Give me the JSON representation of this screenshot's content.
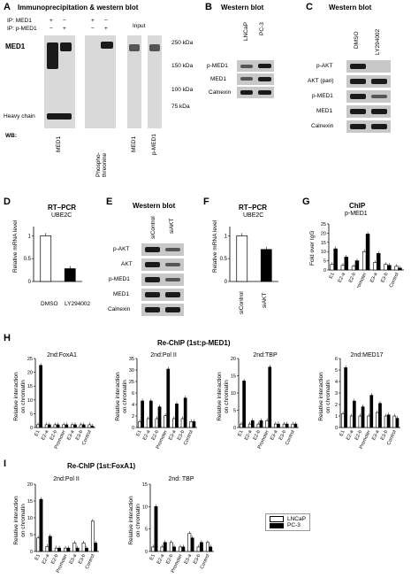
{
  "panels": {
    "A": {
      "label": "A",
      "title": "Immunoprecipitation & western blot",
      "ip_rows": [
        "IP:  MED1",
        "IP: p-MED1"
      ],
      "ip_marks": [
        [
          "+",
          "−",
          "+",
          "−"
        ],
        [
          "−",
          "+",
          "−",
          "+"
        ]
      ],
      "input": "Input",
      "target": "MED1",
      "heavy": "Heavy chain",
      "wb": "WB:",
      "wb_labels": [
        "MED1",
        "Phospho-threonine",
        "MED1",
        "p-MED1"
      ],
      "markers": [
        "250 kDa",
        "150 kDa",
        "100 kDa",
        "75 kDa"
      ]
    },
    "B": {
      "label": "B",
      "title": "Western blot",
      "lanes": [
        "LNCaP",
        "PC-3"
      ],
      "rows": [
        "p-MED1",
        "MED1",
        "Calnexin"
      ]
    },
    "C": {
      "label": "C",
      "title": "Western blot",
      "lanes": [
        "DMSO",
        "LY294002"
      ],
      "rows": [
        "p-AKT",
        "AKT (pan)",
        "p-MED1",
        "MED1",
        "Calnexin"
      ]
    },
    "D": {
      "label": "D",
      "title": "RT–PCR",
      "subtitle": "UBE2C",
      "ylabel": "Relative mRNA level",
      "yticks": [
        "0",
        "0.5",
        "1"
      ],
      "cats": [
        "DMSO",
        "LY294002"
      ]
    },
    "E": {
      "label": "E",
      "title": "Western blot",
      "lanes": [
        "siControl",
        "siAKT"
      ],
      "rows": [
        "p-AKT",
        "AKT",
        "p-MED1",
        "MED1",
        "Calnexin"
      ]
    },
    "F": {
      "label": "F",
      "title": "RT–PCR",
      "subtitle": "UBE2C",
      "ylabel": "Relative mRNA level",
      "yticks": [
        "0",
        "0.5",
        "1"
      ],
      "cats": [
        "siControl",
        "siAKT"
      ]
    },
    "G": {
      "label": "G",
      "title": "ChIP",
      "subtitle": "p-MED1",
      "ylabel": "Fold over IgG",
      "yticks": [
        "0",
        "5",
        "10",
        "15",
        "20",
        "25"
      ]
    },
    "H": {
      "label": "H",
      "title": "Re-ChIP (1st:p-MED1)",
      "subs": [
        {
          "title": "2nd:FoxA1",
          "yticks": [
            "0",
            "5",
            "10",
            "15",
            "20",
            "25"
          ]
        },
        {
          "title": "2nd:Pol II",
          "yticks": [
            "0",
            "2",
            "4",
            "6",
            "25",
            "30",
            "35"
          ]
        },
        {
          "title": "2nd:TBP",
          "yticks": [
            "0",
            "5",
            "10",
            "15",
            "20"
          ]
        },
        {
          "title": "2nd:MED17",
          "yticks": [
            "0",
            "1",
            "2",
            "3",
            "4",
            "5",
            "6"
          ]
        }
      ],
      "ylabel1": "Relative interaction",
      "ylabel2": "on chromatin"
    },
    "I": {
      "label": "I",
      "title": "Re-ChIP (1st:FoxA1)",
      "subs": [
        {
          "title": "2nd:Pol II",
          "yticks": [
            "0",
            "5",
            "10",
            "15",
            "20"
          ]
        },
        {
          "title": "2nd: TBP",
          "yticks": [
            "0",
            "5",
            "10",
            "15"
          ]
        }
      ],
      "ylabel1": "Relative interaction",
      "ylabel2": "on chromatin",
      "legend": [
        "LNCaP",
        "PC-3"
      ]
    }
  },
  "xcats": [
    "E1",
    "E2-a",
    "E2-b",
    "Promoter",
    "E3-a",
    "E3-b",
    "Control"
  ],
  "chart_data": [
    {
      "type": "bar",
      "name": "D",
      "categories": [
        "DMSO",
        "LY294002"
      ],
      "values": [
        1.0,
        0.28
      ],
      "ylim": [
        0,
        1.2
      ]
    },
    {
      "type": "bar",
      "name": "F",
      "categories": [
        "siControl",
        "siAKT"
      ],
      "values": [
        1.0,
        0.7
      ],
      "ylim": [
        0,
        1.2
      ]
    },
    {
      "type": "bar",
      "name": "G",
      "categories": [
        "E1",
        "E2-a",
        "E2-b",
        "Promoter",
        "E3-a",
        "E3-b",
        "Control"
      ],
      "series": [
        {
          "name": "LNCaP",
          "values": [
            3,
            2.5,
            2,
            10,
            4,
            3,
            2
          ]
        },
        {
          "name": "PC-3",
          "values": [
            11.5,
            7,
            5,
            19.5,
            9,
            2.5,
            1
          ]
        }
      ],
      "ylim": [
        0,
        25
      ]
    },
    {
      "type": "bar",
      "name": "H-FoxA1",
      "categories": [
        "E1",
        "E2-a",
        "E2-b",
        "Promoter",
        "E3-a",
        "E3-b",
        "Control"
      ],
      "series": [
        {
          "name": "LNCaP",
          "values": [
            1,
            1,
            1,
            1,
            1,
            1,
            1
          ]
        },
        {
          "name": "PC-3",
          "values": [
            22.5,
            1,
            1,
            1,
            1,
            1,
            0.5
          ]
        }
      ],
      "ylim": [
        0,
        25
      ]
    },
    {
      "type": "bar",
      "name": "H-PolII",
      "categories": [
        "E1",
        "E2-a",
        "E2-b",
        "Promoter",
        "E3-a",
        "E3-b",
        "Control"
      ],
      "series": [
        {
          "name": "LNCaP",
          "values": [
            1,
            1.5,
            1.5,
            2,
            1.5,
            1.5,
            1
          ]
        },
        {
          "name": "PC-3",
          "values": [
            4.5,
            4.5,
            3.5,
            31,
            4,
            5,
            1
          ]
        }
      ],
      "ylim": [
        0,
        35
      ]
    },
    {
      "type": "bar",
      "name": "H-TBP",
      "categories": [
        "E1",
        "E2-a",
        "E2-b",
        "Promoter",
        "E3-a",
        "E3-b",
        "Control"
      ],
      "series": [
        {
          "name": "LNCaP",
          "values": [
            1,
            1,
            1,
            2,
            1,
            1,
            1
          ]
        },
        {
          "name": "PC-3",
          "values": [
            13.5,
            2,
            2,
            17.5,
            1,
            1,
            1
          ]
        }
      ],
      "ylim": [
        0,
        20
      ]
    },
    {
      "type": "bar",
      "name": "H-MED17",
      "categories": [
        "E1",
        "E2-a",
        "E2-b",
        "Promoter",
        "E3-a",
        "E3-b",
        "Control"
      ],
      "series": [
        {
          "name": "LNCaP",
          "values": [
            1.2,
            1,
            1,
            1,
            1.3,
            1,
            1
          ]
        },
        {
          "name": "PC-3",
          "values": [
            5.2,
            2.3,
            1.8,
            2.8,
            2.1,
            1.1,
            0.8
          ]
        }
      ],
      "ylim": [
        0,
        6
      ]
    },
    {
      "type": "bar",
      "name": "I-PolII",
      "categories": [
        "E1",
        "E2-a",
        "E2-b",
        "Promoter",
        "E3-a",
        "E3-b",
        "Control"
      ],
      "series": [
        {
          "name": "LNCaP",
          "values": [
            4,
            1.5,
            1,
            1,
            2.5,
            2.5,
            9
          ]
        },
        {
          "name": "PC-3",
          "values": [
            15.5,
            4.5,
            1,
            1,
            1,
            1,
            2.5
          ]
        }
      ],
      "ylim": [
        0,
        20
      ]
    },
    {
      "type": "bar",
      "name": "I-TBP",
      "categories": [
        "E1",
        "E2-a",
        "E2-b",
        "Promoter",
        "E3-a",
        "E3-b",
        "Control"
      ],
      "series": [
        {
          "name": "LNCaP",
          "values": [
            1,
            1,
            2,
            1,
            4,
            1,
            2
          ]
        },
        {
          "name": "PC-3",
          "values": [
            10,
            2,
            1,
            1,
            3,
            2,
            1
          ]
        }
      ],
      "ylim": [
        0,
        15
      ]
    }
  ]
}
